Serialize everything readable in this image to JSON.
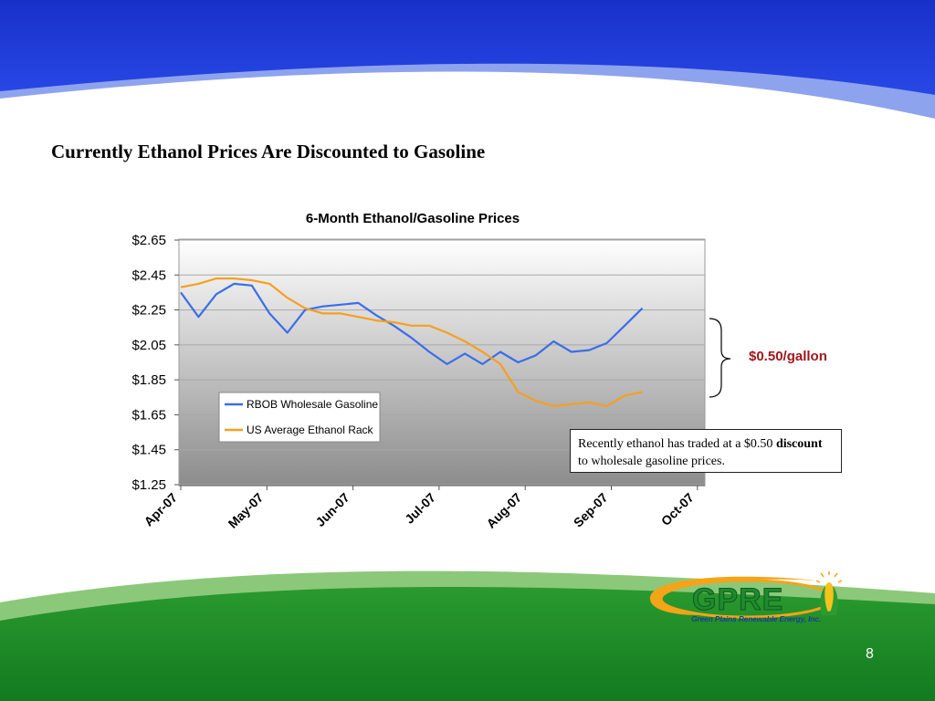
{
  "slide": {
    "title": "Currently Ethanol Prices Are Discounted to Gasoline",
    "page_number": "8",
    "brace_label": "$0.50/gallon",
    "callout": {
      "text_pre": "Recently ethanol has traded at a $0.50 ",
      "text_bold": "discount",
      "text_post": " to wholesale gasoline prices."
    },
    "logo": {
      "wordmark": "GPRE",
      "subtitle": "Green Plains Renewable Energy, Inc."
    },
    "colors": {
      "header_blue": "#1f37d6",
      "footer_green": "#1a8a2a",
      "brace_label": "#a0161b"
    }
  },
  "chart_data": {
    "type": "line",
    "title": "6-Month Ethanol/Gasoline Prices",
    "xlabel": "",
    "ylabel": "",
    "x_tick_labels": [
      "Apr-07",
      "May-07",
      "Jun-07",
      "Jul-07",
      "Aug-07",
      "Sep-07",
      "Oct-07"
    ],
    "y_tick_labels": [
      "$2.65",
      "$2.45",
      "$2.25",
      "$2.05",
      "$1.85",
      "$1.65",
      "$1.45",
      "$1.25"
    ],
    "ylim": [
      1.25,
      2.65
    ],
    "y_ticks": [
      2.65,
      2.45,
      2.25,
      2.05,
      1.85,
      1.65,
      1.45,
      1.25
    ],
    "x_points_per_month": 4.85,
    "legend_position": "lower-left",
    "grid": true,
    "series": [
      {
        "name": "RBOB Wholesale Gasoline",
        "color": "#3a6ee8",
        "values": [
          2.35,
          2.21,
          2.34,
          2.4,
          2.39,
          2.23,
          2.12,
          2.25,
          2.27,
          2.28,
          2.29,
          2.22,
          2.16,
          2.09,
          2.01,
          1.94,
          2.0,
          1.94,
          2.01,
          1.95,
          1.99,
          2.07,
          2.01,
          2.02,
          2.06,
          2.16,
          2.26
        ]
      },
      {
        "name": "US Average Ethanol Rack",
        "color": "#f5a020",
        "values": [
          2.38,
          2.4,
          2.43,
          2.43,
          2.42,
          2.4,
          2.32,
          2.26,
          2.23,
          2.23,
          2.21,
          2.19,
          2.18,
          2.16,
          2.16,
          2.12,
          2.07,
          2.01,
          1.94,
          1.78,
          1.73,
          1.7,
          1.71,
          1.72,
          1.7,
          1.76,
          1.78
        ]
      }
    ]
  }
}
